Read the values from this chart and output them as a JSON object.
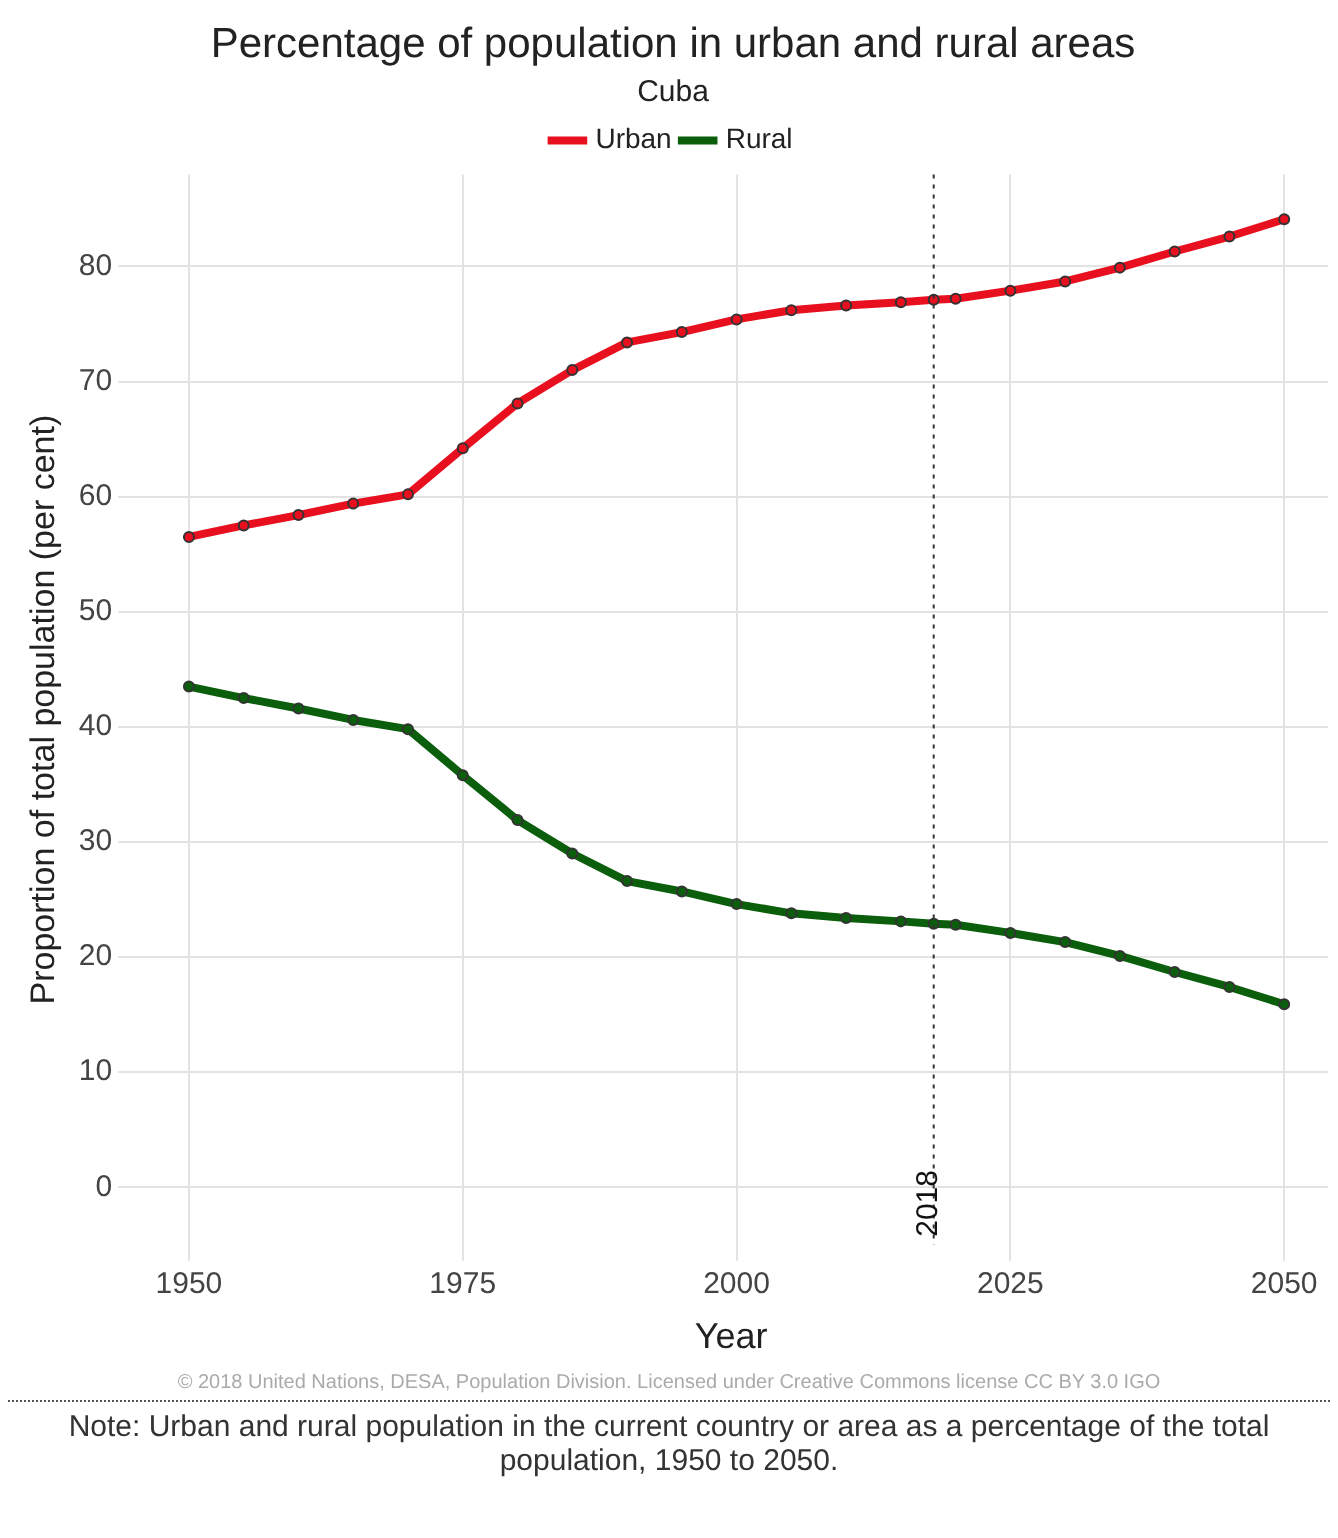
{
  "chart_data": {
    "type": "line",
    "title": "Percentage of population in urban and rural areas",
    "subtitle": "Cuba",
    "xlabel": "Year",
    "ylabel": "Proportion of total population (per cent)",
    "x": [
      1950,
      1955,
      1960,
      1965,
      1970,
      1975,
      1980,
      1985,
      1990,
      1995,
      2000,
      2005,
      2010,
      2015,
      2018,
      2020,
      2025,
      2030,
      2035,
      2040,
      2045,
      2050
    ],
    "series": [
      {
        "name": "Urban",
        "color": "#e8101e",
        "values": [
          56.5,
          57.5,
          58.4,
          59.4,
          60.2,
          64.2,
          68.1,
          71.0,
          73.4,
          74.3,
          75.4,
          76.2,
          76.6,
          76.9,
          77.1,
          77.2,
          77.9,
          78.7,
          79.9,
          81.3,
          82.6,
          84.1
        ]
      },
      {
        "name": "Rural",
        "color": "#0b5e0b",
        "values": [
          43.5,
          42.5,
          41.6,
          40.6,
          39.8,
          35.8,
          31.9,
          29.0,
          26.6,
          25.7,
          24.6,
          23.8,
          23.4,
          23.1,
          22.9,
          22.8,
          22.1,
          21.3,
          20.1,
          18.7,
          17.4,
          15.9
        ]
      }
    ],
    "xlim": [
      1945,
      2054
    ],
    "xticks": [
      1950,
      1975,
      2000,
      2025,
      2050
    ],
    "ylim": [
      -5,
      88
    ],
    "yticks": [
      0,
      10,
      20,
      30,
      40,
      50,
      60,
      70,
      80
    ],
    "ref_lines": [
      {
        "axis": "x",
        "value": 2018,
        "label": "2018",
        "color": "#333333",
        "line_style": "dotted"
      }
    ],
    "annotations": [
      "© 2018 United Nations, DESA, Population Division. Licensed under Creative Commons license CC BY 3.0 IGO",
      "Note: Urban and rural population in the current country or area as a percentage of the total population, 1950 to 2050."
    ],
    "grid": true,
    "legend": "top",
    "marker": "circle",
    "line_style": "solid"
  }
}
